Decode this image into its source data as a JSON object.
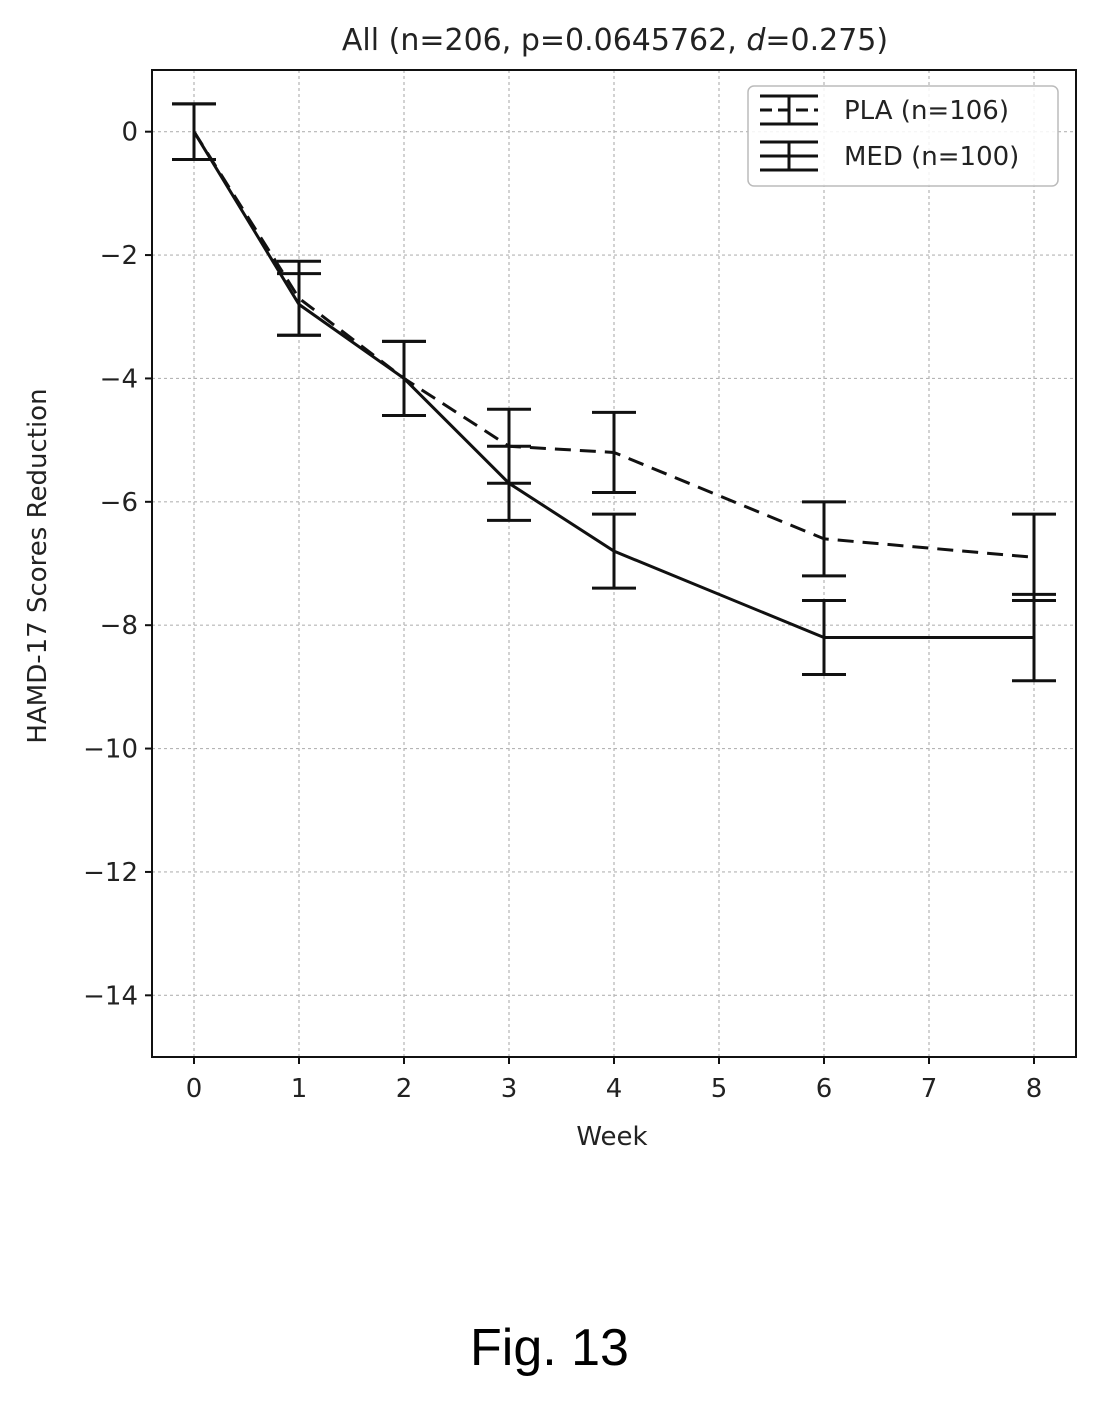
{
  "figure_label": "Fig. 13",
  "chart_data": {
    "type": "line",
    "title": "All (n=206, p=0.0645762, d=0.275)",
    "title_parts": {
      "prefix": "All (n=206, p=0.0645762, ",
      "italic": "d",
      "suffix": "=0.275)"
    },
    "xlabel": "Week",
    "ylabel": "HAMD-17 Scores Reduction",
    "xlim": [
      -0.4,
      8.4
    ],
    "ylim": [
      -15,
      1
    ],
    "xticks": [
      0,
      1,
      2,
      3,
      4,
      5,
      6,
      7,
      8
    ],
    "xtick_labels": [
      "0",
      "1",
      "2",
      "3",
      "4",
      "5",
      "6",
      "7",
      "8"
    ],
    "yticks": [
      0,
      -2,
      -4,
      -6,
      -8,
      -10,
      -12,
      -14
    ],
    "ytick_labels": [
      "0",
      "−2",
      "−4",
      "−6",
      "−8",
      "−10",
      "−12",
      "−14"
    ],
    "grid": true,
    "legend_position": "top-right",
    "series": [
      {
        "name": "PLA (n=106)",
        "line_style": "dashed",
        "color": "#111111",
        "x": [
          0,
          1,
          2,
          3,
          4,
          6,
          8
        ],
        "y": [
          0,
          -2.7,
          -4.0,
          -5.1,
          -5.2,
          -6.6,
          -6.9
        ],
        "err": [
          0.45,
          0.6,
          0.6,
          0.6,
          0.65,
          0.6,
          0.7
        ]
      },
      {
        "name": "MED (n=100)",
        "line_style": "solid",
        "color": "#111111",
        "x": [
          0,
          1,
          2,
          3,
          4,
          6,
          8
        ],
        "y": [
          0,
          -2.8,
          -4.0,
          -5.7,
          -6.8,
          -8.2,
          -8.2
        ],
        "err": [
          0.45,
          0.5,
          0.6,
          0.6,
          0.6,
          0.6,
          0.7
        ]
      }
    ]
  }
}
